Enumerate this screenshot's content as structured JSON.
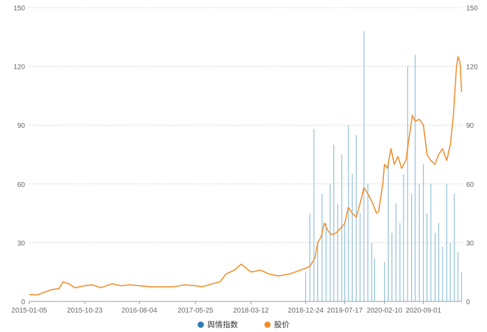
{
  "chart_data": {
    "type": "bar+line",
    "x_tick_labels": [
      "2015-01-05",
      "2015-10-23",
      "2016-08-04",
      "2017-05-25",
      "2018-03-12",
      "2018-12-24",
      "2019-07-17",
      "2020-02-10",
      "2020-09-01"
    ],
    "y_left": {
      "min": 0,
      "max": 150,
      "ticks": [
        0,
        30,
        60,
        90,
        120,
        150
      ]
    },
    "y_right": {
      "min": 0,
      "max": 150,
      "ticks": [
        0,
        30,
        60,
        90,
        120,
        150
      ]
    },
    "grid": "horizontal-dotted",
    "legend_position": "bottom-center",
    "series": [
      {
        "name": "舆情指数",
        "kind": "bar",
        "color": "#2f7bb5",
        "bar_color": "#8dbfd9",
        "note_range": "2018-12-24 to 2021-03",
        "points": [
          [
            "2018-12-24",
            15
          ],
          [
            "2019-01-15",
            45
          ],
          [
            "2019-02-05",
            88
          ],
          [
            "2019-02-25",
            30
          ],
          [
            "2019-03-20",
            55
          ],
          [
            "2019-04-10",
            40
          ],
          [
            "2019-05-01",
            60
          ],
          [
            "2019-05-20",
            80
          ],
          [
            "2019-06-10",
            50
          ],
          [
            "2019-07-01",
            75
          ],
          [
            "2019-07-17",
            40
          ],
          [
            "2019-08-05",
            90
          ],
          [
            "2019-08-25",
            65
          ],
          [
            "2019-09-15",
            85
          ],
          [
            "2019-10-05",
            45
          ],
          [
            "2019-10-25",
            138
          ],
          [
            "2019-11-15",
            60
          ],
          [
            "2019-12-05",
            30
          ],
          [
            "2019-12-20",
            22
          ],
          [
            "2020-01-10",
            0
          ],
          [
            "2020-02-10",
            20
          ],
          [
            "2020-03-01",
            70
          ],
          [
            "2020-03-20",
            35
          ],
          [
            "2020-04-10",
            50
          ],
          [
            "2020-05-01",
            40
          ],
          [
            "2020-05-20",
            65
          ],
          [
            "2020-06-10",
            120
          ],
          [
            "2020-07-01",
            55
          ],
          [
            "2020-07-20",
            126
          ],
          [
            "2020-08-10",
            60
          ],
          [
            "2020-09-01",
            70
          ],
          [
            "2020-09-20",
            45
          ],
          [
            "2020-10-10",
            60
          ],
          [
            "2020-11-01",
            35
          ],
          [
            "2020-11-20",
            40
          ],
          [
            "2020-12-10",
            28
          ],
          [
            "2021-01-01",
            60
          ],
          [
            "2021-01-20",
            30
          ],
          [
            "2021-02-10",
            55
          ],
          [
            "2021-03-01",
            25
          ],
          [
            "2021-03-20",
            15
          ]
        ]
      },
      {
        "name": "股价",
        "kind": "line",
        "color": "#f08d2a",
        "points": [
          [
            "2015-01-05",
            3.5
          ],
          [
            "2015-02-15",
            3.3
          ],
          [
            "2015-03-20",
            4.5
          ],
          [
            "2015-05-01",
            6.0
          ],
          [
            "2015-06-10",
            6.5
          ],
          [
            "2015-07-01",
            10.0
          ],
          [
            "2015-08-01",
            9.0
          ],
          [
            "2015-09-01",
            7.0
          ],
          [
            "2015-10-23",
            8.0
          ],
          [
            "2015-12-01",
            8.5
          ],
          [
            "2016-01-15",
            7.0
          ],
          [
            "2016-02-15",
            8.0
          ],
          [
            "2016-03-15",
            9.0
          ],
          [
            "2016-05-01",
            8.0
          ],
          [
            "2016-06-15",
            8.5
          ],
          [
            "2016-08-04",
            8.0
          ],
          [
            "2016-10-01",
            7.5
          ],
          [
            "2016-12-01",
            7.5
          ],
          [
            "2017-02-01",
            7.5
          ],
          [
            "2017-04-01",
            8.5
          ],
          [
            "2017-05-25",
            8.0
          ],
          [
            "2017-07-01",
            7.5
          ],
          [
            "2017-08-20",
            9.0
          ],
          [
            "2017-10-01",
            10.0
          ],
          [
            "2017-11-01",
            14.0
          ],
          [
            "2017-12-15",
            16.0
          ],
          [
            "2018-01-20",
            19.0
          ],
          [
            "2018-03-12",
            15.0
          ],
          [
            "2018-05-01",
            16.0
          ],
          [
            "2018-06-15",
            14.0
          ],
          [
            "2018-08-01",
            13.0
          ],
          [
            "2018-10-01",
            14.0
          ],
          [
            "2018-12-24",
            17.0
          ],
          [
            "2019-01-15",
            18.0
          ],
          [
            "2019-02-10",
            22.0
          ],
          [
            "2019-02-25",
            30.0
          ],
          [
            "2019-03-15",
            33.0
          ],
          [
            "2019-04-01",
            40.0
          ],
          [
            "2019-04-20",
            36.0
          ],
          [
            "2019-05-10",
            34.0
          ],
          [
            "2019-06-01",
            35.0
          ],
          [
            "2019-07-01",
            38.0
          ],
          [
            "2019-07-17",
            40.0
          ],
          [
            "2019-08-05",
            48.0
          ],
          [
            "2019-08-25",
            45.0
          ],
          [
            "2019-09-15",
            43.0
          ],
          [
            "2019-10-05",
            50.0
          ],
          [
            "2019-10-25",
            58.0
          ],
          [
            "2019-11-15",
            55.0
          ],
          [
            "2019-12-10",
            50.0
          ],
          [
            "2019-12-30",
            45.0
          ],
          [
            "2020-01-10",
            46.0
          ],
          [
            "2020-02-01",
            60.0
          ],
          [
            "2020-02-10",
            70.0
          ],
          [
            "2020-02-25",
            68.0
          ],
          [
            "2020-03-15",
            78.0
          ],
          [
            "2020-04-01",
            70.0
          ],
          [
            "2020-04-20",
            74.0
          ],
          [
            "2020-05-10",
            68.0
          ],
          [
            "2020-06-01",
            72.0
          ],
          [
            "2020-06-20",
            85.0
          ],
          [
            "2020-07-05",
            95.0
          ],
          [
            "2020-07-20",
            92.0
          ],
          [
            "2020-08-10",
            93.0
          ],
          [
            "2020-09-01",
            90.0
          ],
          [
            "2020-09-20",
            75.0
          ],
          [
            "2020-10-10",
            72.0
          ],
          [
            "2020-11-01",
            70.0
          ],
          [
            "2020-11-20",
            75.0
          ],
          [
            "2020-12-10",
            78.0
          ],
          [
            "2021-01-01",
            72.0
          ],
          [
            "2021-01-20",
            80.0
          ],
          [
            "2021-02-05",
            95.0
          ],
          [
            "2021-02-20",
            118.0
          ],
          [
            "2021-03-01",
            125.0
          ],
          [
            "2021-03-12",
            122.0
          ],
          [
            "2021-03-20",
            107.0
          ]
        ]
      }
    ]
  }
}
